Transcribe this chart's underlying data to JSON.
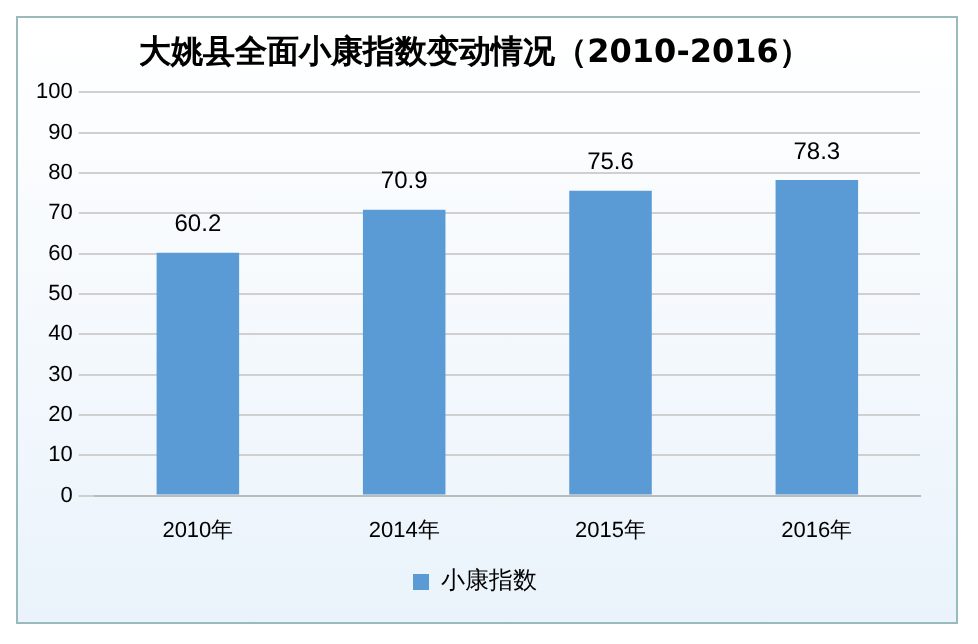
{
  "chart_data": {
    "type": "bar",
    "title": "大姚县全面小康指数变动情况（2010-2016）",
    "categories": [
      "2010年",
      "2014年",
      "2015年",
      "2016年"
    ],
    "series": [
      {
        "name": "小康指数",
        "color": "#5b9bd5",
        "values": [
          60.2,
          70.9,
          75.6,
          78.3
        ]
      }
    ],
    "ylim": [
      0,
      100
    ],
    "yticks": [
      0,
      10,
      20,
      30,
      40,
      50,
      60,
      70,
      80,
      90,
      100
    ],
    "grid": "y",
    "legend": "bottom",
    "data_labels": true
  }
}
